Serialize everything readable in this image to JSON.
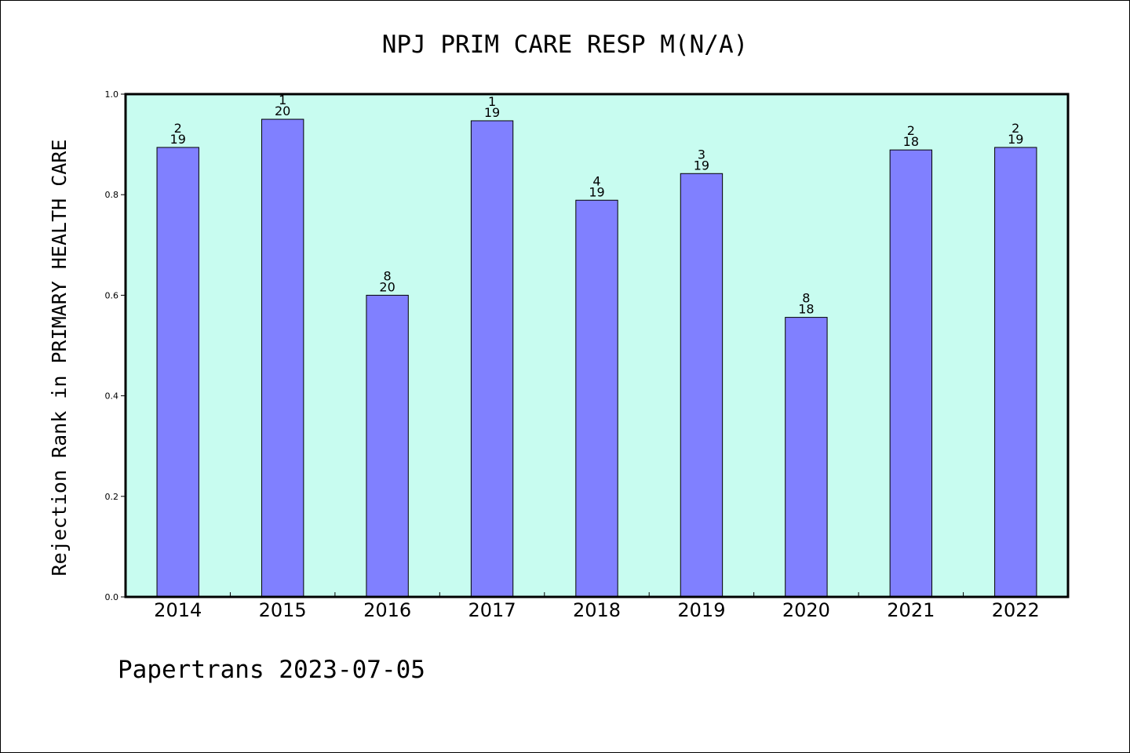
{
  "chart_data": {
    "type": "bar",
    "title": "NPJ PRIM CARE RESP M(N/A)",
    "ylabel": "Rejection Rank in PRIMARY HEALTH CARE",
    "xlabel": "",
    "ylim": [
      0,
      1.0
    ],
    "yticks": [
      "0.0",
      "0.2",
      "0.4",
      "0.6",
      "0.8",
      "1.0"
    ],
    "grid": false,
    "categories": [
      "2014",
      "2015",
      "2016",
      "2017",
      "2018",
      "2019",
      "2020",
      "2021",
      "2022"
    ],
    "values": [
      0.894,
      0.95,
      0.6,
      0.947,
      0.789,
      0.842,
      0.556,
      0.889,
      0.894
    ],
    "rank": [
      "2",
      "1",
      "8",
      "1",
      "4",
      "3",
      "8",
      "2",
      "2"
    ],
    "total": [
      "19",
      "20",
      "20",
      "19",
      "19",
      "19",
      "18",
      "18",
      "19"
    ],
    "colors": {
      "bar": "#8080ff",
      "plot_background": "#c8fcf0",
      "border": "#000000"
    }
  },
  "footer": {
    "text": "Papertrans 2023-07-05"
  }
}
